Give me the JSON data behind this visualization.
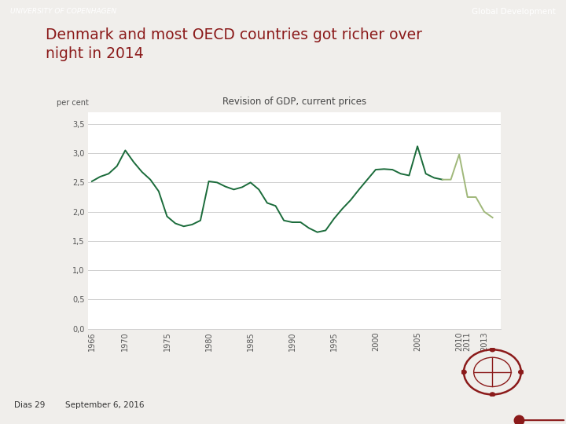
{
  "title_line1": "Denmark and most OECD countries got richer over",
  "title_line2": "night in 2014",
  "title_color": "#8B1A1A",
  "header_bar_color": "#666666",
  "header_text": "Global Development",
  "university_text": "UNIVERSITY OF COPENHAGEN",
  "chart_title": "Revision of GDP, current prices",
  "ylabel": "per cent",
  "slide_bg_color": "#f0eeeb",
  "chart_bg_color": "#ffffff",
  "footer_slide": "Dias 29",
  "footer_date": "September 6, 2016",
  "line_color_dark": "#1a6b3a",
  "line_color_light": "#a0b87a",
  "x_dark": [
    1966,
    1967,
    1968,
    1969,
    1970,
    1971,
    1972,
    1973,
    1974,
    1975,
    1976,
    1977,
    1978,
    1979,
    1980,
    1981,
    1982,
    1983,
    1984,
    1985,
    1986,
    1987,
    1988,
    1989,
    1990,
    1991,
    1992,
    1993,
    1994,
    1995,
    1996,
    1997,
    1998,
    1999,
    2000,
    2001,
    2002,
    2003,
    2004,
    2005,
    2006,
    2007,
    2008
  ],
  "y_dark": [
    2.52,
    2.6,
    2.65,
    2.78,
    3.05,
    2.85,
    2.68,
    2.55,
    2.35,
    1.92,
    1.8,
    1.75,
    1.78,
    1.85,
    2.52,
    2.5,
    2.43,
    2.38,
    2.42,
    2.5,
    2.38,
    2.15,
    2.1,
    1.85,
    1.82,
    1.82,
    1.72,
    1.65,
    1.68,
    1.88,
    2.05,
    2.2,
    2.38,
    2.55,
    2.72,
    2.73,
    2.72,
    2.65,
    2.62,
    3.12,
    2.65,
    2.58,
    2.55
  ],
  "x_light": [
    2008,
    2009,
    2010,
    2011,
    2012,
    2013,
    2014
  ],
  "y_light": [
    2.55,
    2.55,
    2.98,
    2.25,
    2.25,
    2.0,
    1.9
  ],
  "yticks": [
    0.0,
    0.5,
    1.0,
    1.5,
    2.0,
    2.5,
    3.0,
    3.5
  ],
  "xtick_years": [
    1966,
    1970,
    1975,
    1980,
    1985,
    1990,
    1995,
    2000,
    2005,
    2010,
    2011,
    2013
  ],
  "ylim": [
    0.0,
    3.7
  ],
  "xlim": [
    1965.5,
    2015.0
  ],
  "red_dot_color": "#8B1A1A",
  "grid_color": "#d0d0d0",
  "tick_color": "#555555"
}
